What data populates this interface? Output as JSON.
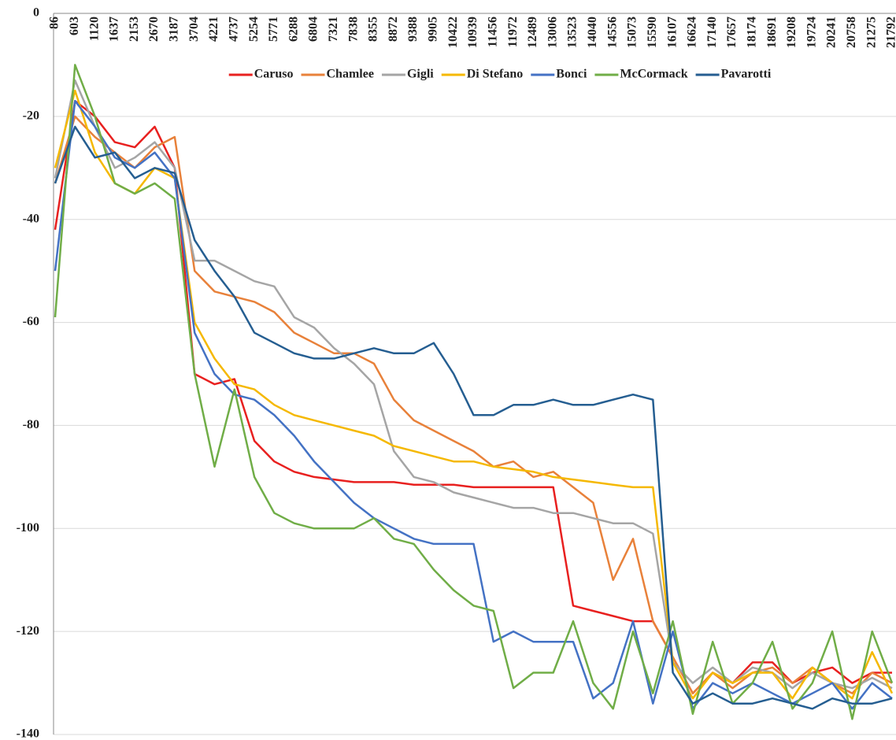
{
  "chart_data": {
    "type": "line",
    "categories": [
      "86",
      "603",
      "1120",
      "1637",
      "2153",
      "2670",
      "3187",
      "3704",
      "4221",
      "4737",
      "5254",
      "5771",
      "6288",
      "6804",
      "7321",
      "7838",
      "8355",
      "8872",
      "9388",
      "9905",
      "10422",
      "10939",
      "11456",
      "11972",
      "12489",
      "13006",
      "13523",
      "14040",
      "14556",
      "15073",
      "15590",
      "16107",
      "16624",
      "17140",
      "17657",
      "18174",
      "18691",
      "19208",
      "19724",
      "20241",
      "20758",
      "21275",
      "21792"
    ],
    "ylim": [
      -140,
      0
    ],
    "yticks": [
      -140,
      -120,
      -100,
      -80,
      -60,
      -40,
      -20,
      0
    ],
    "grid": true,
    "legend": "top",
    "series": [
      {
        "name": "Caruso",
        "color": "#e8201f",
        "values": [
          -42,
          -17,
          -20,
          -25,
          -26,
          -22,
          -30,
          -70,
          -72,
          -71,
          -83,
          -87,
          -89,
          -90,
          -90.5,
          -91,
          -91,
          -91,
          -91.5,
          -91.5,
          -91.5,
          -92,
          -92,
          -92,
          -92,
          -92,
          -115,
          -116,
          -117,
          -118,
          -118,
          -125,
          -132,
          -128,
          -130,
          -126,
          -126,
          -130,
          -128,
          -127,
          -130,
          -128,
          -128
        ]
      },
      {
        "name": "Chamlee",
        "color": "#e8813a",
        "values": [
          -33,
          -20,
          -24,
          -27,
          -30,
          -26,
          -24,
          -50,
          -54,
          -55,
          -56,
          -58,
          -62,
          -64,
          -66,
          -66,
          -68,
          -75,
          -79,
          -81,
          -83,
          -85,
          -88,
          -87,
          -90,
          -89,
          -92,
          -95,
          -110,
          -102,
          -118,
          -125,
          -132,
          -128,
          -131,
          -128,
          -127,
          -130,
          -127,
          -130,
          -132,
          -128,
          -130
        ]
      },
      {
        "name": "Gigli",
        "color": "#a5a5a5",
        "values": [
          -32,
          -13,
          -22,
          -30,
          -28,
          -25,
          -30,
          -48,
          -48,
          -50,
          -52,
          -53,
          -59,
          -61,
          -65,
          -68,
          -72,
          -85,
          -90,
          -91,
          -93,
          -94,
          -95,
          -96,
          -96,
          -97,
          -97,
          -98,
          -99,
          -99,
          -101,
          -126,
          -130,
          -127,
          -130,
          -127,
          -128,
          -131,
          -128,
          -130,
          -131,
          -129,
          -131
        ]
      },
      {
        "name": "Di Stefano",
        "color": "#f5b800",
        "values": [
          -30,
          -15,
          -27,
          -33,
          -35,
          -30,
          -32,
          -60,
          -67,
          -72,
          -73,
          -76,
          -78,
          -79,
          -80,
          -81,
          -82,
          -84,
          -85,
          -86,
          -87,
          -87,
          -88,
          -88.5,
          -89,
          -90,
          -90.5,
          -91,
          -91.5,
          -92,
          -92,
          -126,
          -133,
          -128,
          -130,
          -128,
          -128,
          -133,
          -127,
          -130,
          -133,
          -124,
          -132
        ]
      },
      {
        "name": "Bonci",
        "color": "#4472c4",
        "values": [
          -50,
          -17,
          -22,
          -28,
          -30,
          -27,
          -32,
          -62,
          -70,
          -74,
          -75,
          -78,
          -82,
          -87,
          -91,
          -95,
          -98,
          -100,
          -102,
          -103,
          -103,
          -103,
          -122,
          -120,
          -122,
          -122,
          -122,
          -133,
          -130,
          -118,
          -134,
          -120,
          -135,
          -130,
          -132,
          -130,
          -132,
          -134,
          -132,
          -130,
          -135,
          -130,
          -133
        ]
      },
      {
        "name": "McCormack",
        "color": "#70ad47",
        "values": [
          -59,
          -10,
          -20,
          -33,
          -35,
          -33,
          -36,
          -70,
          -88,
          -73,
          -90,
          -97,
          -99,
          -100,
          -100,
          -100,
          -98,
          -102,
          -103,
          -108,
          -112,
          -115,
          -116,
          -131,
          -128,
          -128,
          -118,
          -130,
          -135,
          -120,
          -132,
          -118,
          -136,
          -122,
          -134,
          -130,
          -122,
          -135,
          -130,
          -120,
          -137,
          -120,
          -130
        ]
      },
      {
        "name": "Pavarotti",
        "color": "#255e91",
        "values": [
          -33,
          -22,
          -28,
          -27,
          -32,
          -30,
          -31,
          -44,
          -50,
          -55,
          -62,
          -64,
          -66,
          -67,
          -67,
          -66,
          -65,
          -66,
          -66,
          -64,
          -70,
          -78,
          -78,
          -76,
          -76,
          -75,
          -76,
          -76,
          -75,
          -74,
          -75,
          -128,
          -134,
          -132,
          -134,
          -134,
          -133,
          -134,
          -135,
          -133,
          -134,
          -134,
          -133
        ]
      }
    ]
  }
}
